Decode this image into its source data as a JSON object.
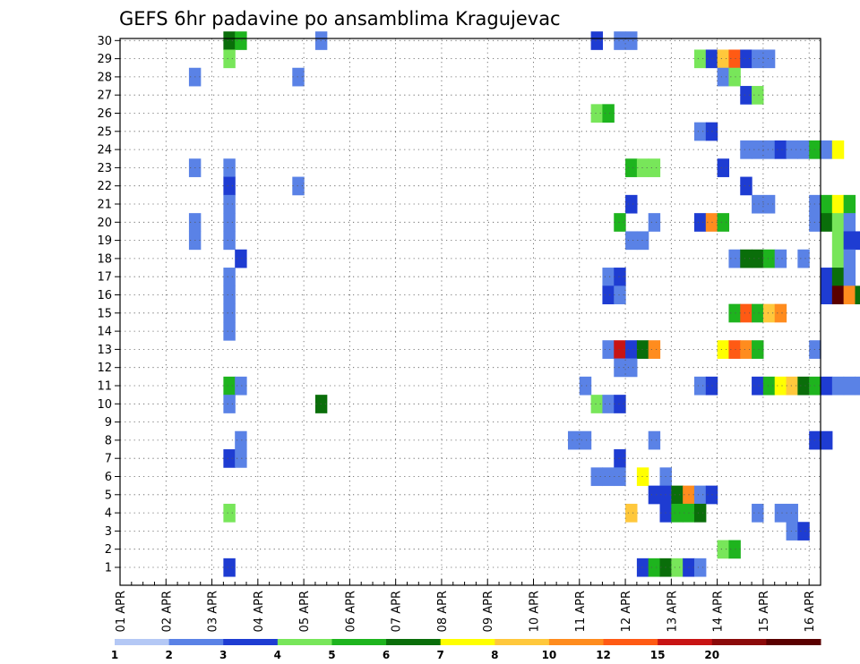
{
  "chart_data": {
    "type": "heatmap",
    "title": "GEFS 6hr padavine po ansamblima Kragujevac",
    "y_labels": [
      "1",
      "2",
      "3",
      "4",
      "5",
      "6",
      "7",
      "8",
      "9",
      "10",
      "11",
      "12",
      "13",
      "14",
      "15",
      "16",
      "17",
      "18",
      "19",
      "20",
      "21",
      "22",
      "23",
      "24",
      "25",
      "26",
      "27",
      "28",
      "29",
      "30"
    ],
    "x_labels": [
      "01 APR",
      "02 APR",
      "03 APR",
      "04 APR",
      "05 APR",
      "06 APR",
      "07 APR",
      "08 APR",
      "09 APR",
      "10 APR",
      "11 APR",
      "12 APR",
      "13 APR",
      "14 APR",
      "15 APR",
      "16 APR"
    ],
    "time_steps": 61,
    "levels": [
      "1",
      "2",
      "3",
      "4",
      "5",
      "6",
      "7",
      "8",
      "10",
      "12",
      "15",
      "20"
    ],
    "palette": [
      "#b4c8f5",
      "#5a82e6",
      "#1e3cd2",
      "#78e65a",
      "#1eb41e",
      "#0a6e0a",
      "#ffff00",
      "#ffc83c",
      "#ff8c1e",
      "#ff5a14",
      "#c81414",
      "#8b0a0a",
      "#5a0000"
    ],
    "grid": true,
    "cells": [
      [
        30,
        9,
        5
      ],
      [
        30,
        10,
        4
      ],
      [
        30,
        17,
        1
      ],
      [
        30,
        41,
        2
      ],
      [
        30,
        43,
        1
      ],
      [
        30,
        44,
        1
      ],
      [
        30,
        67,
        2
      ],
      [
        29,
        9,
        3
      ],
      [
        29,
        50,
        3
      ],
      [
        29,
        51,
        2
      ],
      [
        29,
        52,
        7
      ],
      [
        29,
        53,
        9
      ],
      [
        29,
        54,
        2
      ],
      [
        29,
        55,
        1
      ],
      [
        29,
        56,
        1
      ],
      [
        28,
        6,
        1
      ],
      [
        28,
        15,
        1
      ],
      [
        28,
        52,
        1
      ],
      [
        28,
        53,
        3
      ],
      [
        27,
        54,
        2
      ],
      [
        27,
        55,
        3
      ],
      [
        26,
        41,
        3
      ],
      [
        26,
        42,
        4
      ],
      [
        25,
        50,
        1
      ],
      [
        25,
        51,
        2
      ],
      [
        24,
        54,
        1
      ],
      [
        24,
        55,
        1
      ],
      [
        24,
        56,
        1
      ],
      [
        24,
        57,
        2
      ],
      [
        24,
        58,
        1
      ],
      [
        24,
        59,
        1
      ],
      [
        24,
        60,
        4
      ],
      [
        24,
        61,
        1
      ],
      [
        24,
        62,
        6
      ],
      [
        23,
        6,
        1
      ],
      [
        23,
        9,
        1
      ],
      [
        23,
        44,
        4
      ],
      [
        23,
        45,
        3
      ],
      [
        23,
        46,
        3
      ],
      [
        23,
        52,
        2
      ],
      [
        22,
        9,
        2
      ],
      [
        22,
        15,
        1
      ],
      [
        22,
        54,
        2
      ],
      [
        22,
        65,
        1
      ],
      [
        22,
        66,
        2
      ],
      [
        22,
        67,
        1
      ],
      [
        21,
        9,
        1
      ],
      [
        21,
        44,
        2
      ],
      [
        21,
        55,
        1
      ],
      [
        21,
        56,
        1
      ],
      [
        21,
        60,
        1
      ],
      [
        21,
        61,
        4
      ],
      [
        21,
        62,
        6
      ],
      [
        21,
        63,
        4
      ],
      [
        21,
        66,
        1
      ],
      [
        20,
        6,
        1
      ],
      [
        20,
        9,
        1
      ],
      [
        20,
        43,
        4
      ],
      [
        20,
        46,
        1
      ],
      [
        20,
        50,
        2
      ],
      [
        20,
        51,
        8
      ],
      [
        20,
        52,
        4
      ],
      [
        20,
        60,
        1
      ],
      [
        20,
        61,
        5
      ],
      [
        20,
        62,
        3
      ],
      [
        20,
        63,
        1
      ],
      [
        19,
        6,
        1
      ],
      [
        19,
        9,
        1
      ],
      [
        19,
        44,
        1
      ],
      [
        19,
        45,
        1
      ],
      [
        19,
        62,
        3
      ],
      [
        19,
        63,
        2
      ],
      [
        19,
        64,
        2
      ],
      [
        19,
        65,
        4
      ],
      [
        19,
        66,
        3
      ],
      [
        19,
        67,
        1
      ],
      [
        18,
        10,
        2
      ],
      [
        18,
        53,
        1
      ],
      [
        18,
        54,
        5
      ],
      [
        18,
        55,
        5
      ],
      [
        18,
        56,
        4
      ],
      [
        18,
        57,
        1
      ],
      [
        18,
        59,
        1
      ],
      [
        18,
        62,
        3
      ],
      [
        18,
        63,
        1
      ],
      [
        17,
        9,
        1
      ],
      [
        17,
        42,
        1
      ],
      [
        17,
        43,
        2
      ],
      [
        17,
        61,
        2
      ],
      [
        17,
        62,
        5
      ],
      [
        17,
        63,
        1
      ],
      [
        16,
        9,
        1
      ],
      [
        16,
        42,
        2
      ],
      [
        16,
        43,
        1
      ],
      [
        16,
        61,
        2
      ],
      [
        16,
        62,
        12
      ],
      [
        16,
        63,
        8
      ],
      [
        16,
        64,
        5
      ],
      [
        16,
        65,
        8
      ],
      [
        16,
        66,
        11
      ],
      [
        16,
        67,
        11
      ],
      [
        15,
        9,
        1
      ],
      [
        15,
        53,
        4
      ],
      [
        15,
        54,
        9
      ],
      [
        15,
        55,
        4
      ],
      [
        15,
        56,
        7
      ],
      [
        15,
        57,
        8
      ],
      [
        14,
        9,
        1
      ],
      [
        14,
        67,
        8
      ],
      [
        13,
        42,
        1
      ],
      [
        13,
        43,
        10
      ],
      [
        13,
        44,
        2
      ],
      [
        13,
        45,
        5
      ],
      [
        13,
        46,
        8
      ],
      [
        13,
        52,
        6
      ],
      [
        13,
        53,
        9
      ],
      [
        13,
        54,
        8
      ],
      [
        13,
        55,
        4
      ],
      [
        13,
        60,
        1
      ],
      [
        12,
        43,
        1
      ],
      [
        12,
        44,
        1
      ],
      [
        11,
        9,
        4
      ],
      [
        11,
        10,
        1
      ],
      [
        11,
        40,
        1
      ],
      [
        11,
        50,
        1
      ],
      [
        11,
        51,
        2
      ],
      [
        11,
        55,
        2
      ],
      [
        11,
        56,
        4
      ],
      [
        11,
        57,
        6
      ],
      [
        11,
        58,
        7
      ],
      [
        11,
        59,
        5
      ],
      [
        11,
        60,
        4
      ],
      [
        11,
        61,
        2
      ],
      [
        11,
        62,
        1
      ],
      [
        11,
        63,
        1
      ],
      [
        11,
        64,
        1
      ],
      [
        11,
        65,
        3
      ],
      [
        11,
        66,
        1
      ],
      [
        10,
        9,
        1
      ],
      [
        10,
        17,
        5
      ],
      [
        10,
        41,
        3
      ],
      [
        10,
        42,
        1
      ],
      [
        10,
        43,
        2
      ],
      [
        8,
        10,
        1
      ],
      [
        8,
        39,
        1
      ],
      [
        8,
        40,
        1
      ],
      [
        8,
        46,
        1
      ],
      [
        8,
        60,
        2
      ],
      [
        8,
        61,
        2
      ],
      [
        7,
        9,
        2
      ],
      [
        7,
        10,
        1
      ],
      [
        7,
        43,
        2
      ],
      [
        7,
        67,
        6
      ],
      [
        6,
        41,
        1
      ],
      [
        6,
        42,
        1
      ],
      [
        6,
        43,
        1
      ],
      [
        6,
        45,
        6
      ],
      [
        6,
        47,
        1
      ],
      [
        5,
        46,
        2
      ],
      [
        5,
        47,
        2
      ],
      [
        5,
        48,
        5
      ],
      [
        5,
        49,
        8
      ],
      [
        5,
        50,
        1
      ],
      [
        5,
        51,
        2
      ],
      [
        5,
        67,
        4
      ],
      [
        4,
        9,
        3
      ],
      [
        4,
        44,
        7
      ],
      [
        4,
        47,
        2
      ],
      [
        4,
        48,
        4
      ],
      [
        4,
        49,
        4
      ],
      [
        4,
        50,
        5
      ],
      [
        4,
        55,
        1
      ],
      [
        4,
        57,
        1
      ],
      [
        4,
        58,
        1
      ],
      [
        4,
        66,
        1
      ],
      [
        3,
        58,
        1
      ],
      [
        3,
        59,
        2
      ],
      [
        2,
        52,
        3
      ],
      [
        2,
        53,
        4
      ],
      [
        2,
        66,
        4
      ],
      [
        1,
        9,
        2
      ],
      [
        1,
        45,
        2
      ],
      [
        1,
        46,
        4
      ],
      [
        1,
        47,
        5
      ],
      [
        1,
        48,
        3
      ],
      [
        1,
        49,
        2
      ],
      [
        1,
        50,
        1
      ]
    ]
  }
}
